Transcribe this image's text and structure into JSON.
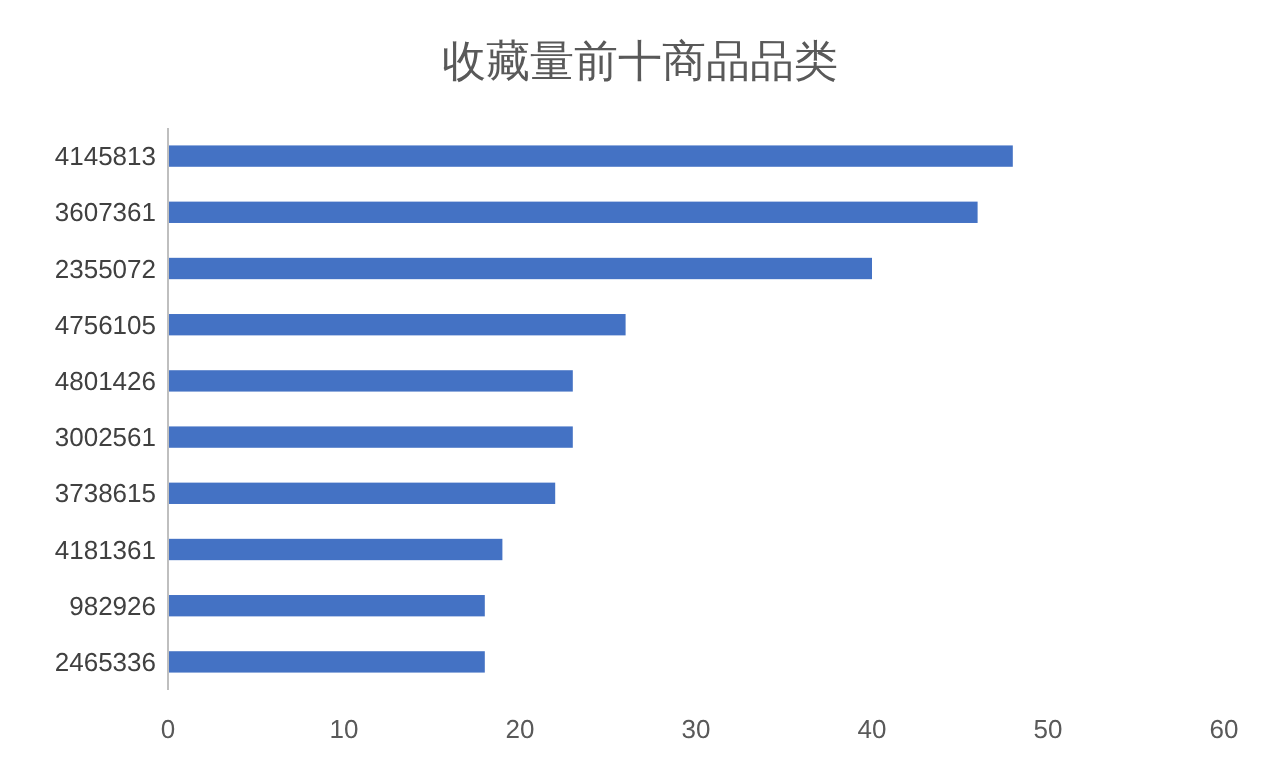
{
  "chart_data": {
    "type": "bar",
    "orientation": "horizontal",
    "title": "收藏量前十商品品类",
    "categories": [
      "4145813",
      "3607361",
      "2355072",
      "4756105",
      "4801426",
      "3002561",
      "3738615",
      "4181361",
      "982926",
      "2465336"
    ],
    "values": [
      48,
      46,
      40,
      26,
      23,
      23,
      22,
      19,
      18,
      18
    ],
    "color": "#4472c4",
    "xlim": [
      0,
      60
    ],
    "xticks": [
      0,
      10,
      20,
      30,
      40,
      50,
      60
    ],
    "grid": false
  }
}
